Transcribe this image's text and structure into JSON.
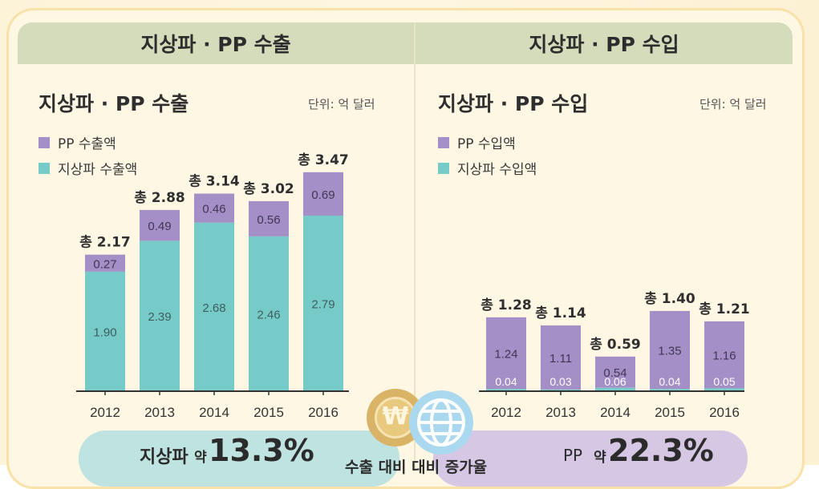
{
  "header": {
    "left": "지상파 · PP 수출",
    "right": "지상파 · PP 수입"
  },
  "export_chart": {
    "title": "지상파 · PP 수출",
    "unit": "단위: 억 달러",
    "legend": {
      "pp": "PP 수출액",
      "tv": "지상파 수출액"
    }
  },
  "import_chart": {
    "title": "지상파 · PP 수입",
    "unit": "단위: 억 달러",
    "legend": {
      "pp": "PP 수입액",
      "tv": "지상파 수입액"
    }
  },
  "colors": {
    "pp": "#a58fc7",
    "tv": "#76cbc9"
  },
  "bottom": {
    "left_prefix": "지상파",
    "left_approx": "약",
    "left_value": "13.3%",
    "center": "수출 대비 대비 증가율",
    "right_prefix": "PP",
    "right_approx": "약",
    "right_value": "22.3%"
  },
  "chart_data": [
    {
      "type": "bar",
      "stacked": true,
      "categories": [
        "2012",
        "2013",
        "2014",
        "2015",
        "2016"
      ],
      "series": [
        {
          "name": "지상파 수출액",
          "values": [
            1.9,
            2.39,
            2.68,
            2.46,
            2.79
          ]
        },
        {
          "name": "PP 수출액",
          "values": [
            0.27,
            0.49,
            0.46,
            0.56,
            0.69
          ]
        }
      ],
      "total_labels": [
        "총 2.17",
        "총 2.88",
        "총 3.14",
        "총 3.02",
        "총 3.47"
      ],
      "segment_labels": {
        "tv": [
          "1.90",
          "2.39",
          "2.68",
          "2.46",
          "2.79"
        ],
        "pp": [
          "0.27",
          "0.49",
          "0.46",
          "0.56",
          "0.69"
        ]
      },
      "title": "지상파 · PP 수출",
      "ylim": [
        0,
        3.47
      ]
    },
    {
      "type": "bar",
      "stacked": true,
      "categories": [
        "2012",
        "2013",
        "2014",
        "2015",
        "2016"
      ],
      "series": [
        {
          "name": "지상파 수입액",
          "values": [
            0.04,
            0.03,
            0.06,
            0.04,
            0.05
          ]
        },
        {
          "name": "PP 수입액",
          "values": [
            1.24,
            1.11,
            0.54,
            1.35,
            1.16
          ]
        }
      ],
      "total_labels": [
        "총 1.28",
        "총 1.14",
        "총 0.59",
        "총 1.40",
        "총 1.21"
      ],
      "segment_labels": {
        "tv": [
          "0.04",
          "0.03",
          "0.06",
          "0.04",
          "0.05"
        ],
        "pp": [
          "1.24",
          "1.11",
          "0.54",
          "1.35",
          "1.16"
        ]
      },
      "title": "지상파 · PP 수입",
      "ylim": [
        0,
        1.4
      ]
    }
  ]
}
